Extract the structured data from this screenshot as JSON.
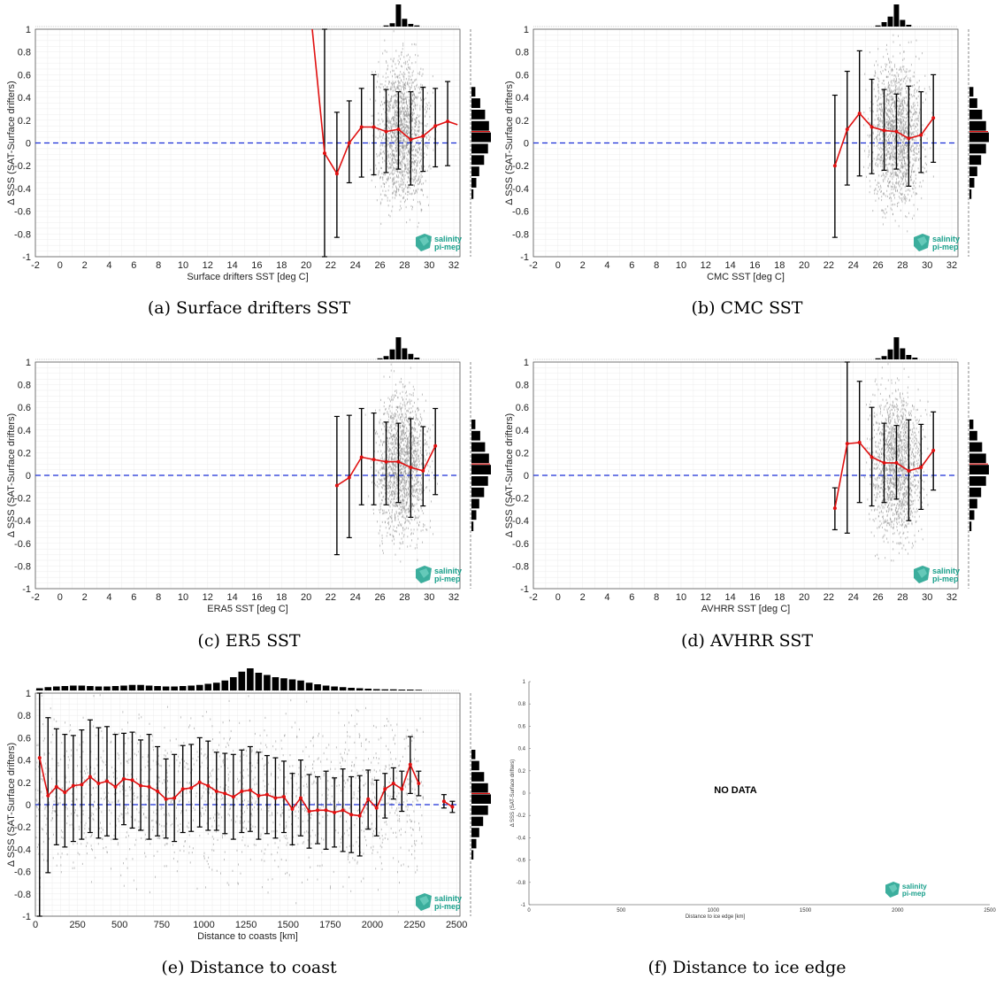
{
  "colors": {
    "mean_line": "#e01010",
    "zero_line": "#1a2fd6",
    "scatter": "#8c8c8c",
    "errorbar": "#000000",
    "logo": "#1aa08c"
  },
  "logo": {
    "line1": "salinity",
    "line2": "pi-mep"
  },
  "chart_data": [
    {
      "type": "scatter",
      "caption": "(a) Surface drifters SST",
      "xlabel": "Surface drifters SST [deg C]",
      "ylabel": "Δ SSS (SAT-Surface drifters)",
      "xlim": [
        -2,
        32.5
      ],
      "ylim": [
        -1,
        1
      ],
      "xticks": [
        -2,
        0,
        2,
        4,
        6,
        8,
        10,
        12,
        14,
        16,
        18,
        20,
        22,
        24,
        26,
        28,
        30,
        32
      ],
      "yticks": [
        -1,
        -0.8,
        -0.6,
        -0.4,
        -0.2,
        0,
        0.2,
        0.4,
        0.6,
        0.8,
        1
      ],
      "grid": true,
      "scatter_cloud": {
        "x_range": [
          21.5,
          32
        ],
        "x_center": 27.8,
        "y_spread": 0.45
      },
      "mean_line": {
        "x": [
          20.5,
          21.5,
          22.5,
          23.5,
          24.5,
          25.5,
          26.5,
          27.5,
          28.5,
          29.5,
          30.5,
          31.5,
          32.3
        ],
        "y": [
          1.0,
          -0.09,
          -0.27,
          0.0,
          0.14,
          0.14,
          0.1,
          0.12,
          0.03,
          0.06,
          0.15,
          0.19,
          0.16
        ],
        "err_low": [
          null,
          -1.0,
          -0.83,
          -0.35,
          -0.3,
          -0.28,
          -0.26,
          -0.23,
          -0.37,
          -0.25,
          -0.21,
          -0.2,
          null
        ],
        "err_high": [
          null,
          1.0,
          0.27,
          0.37,
          0.48,
          0.6,
          0.47,
          0.45,
          0.45,
          0.49,
          0.48,
          0.54,
          null
        ]
      },
      "top_hist": {
        "x": [
          26.5,
          27,
          27.5,
          28,
          28.5,
          29
        ],
        "h": [
          0.05,
          0.15,
          1.0,
          0.35,
          0.12,
          0.05
        ]
      },
      "right_hist": {
        "y": [
          0.5,
          0.4,
          0.3,
          0.2,
          0.1,
          0.0,
          -0.1,
          -0.2,
          -0.3,
          -0.4
        ],
        "w": [
          0.2,
          0.45,
          0.7,
          0.9,
          1.0,
          0.85,
          0.65,
          0.4,
          0.25,
          0.1
        ],
        "mean": 0.1
      },
      "no_data": false
    },
    {
      "type": "scatter",
      "caption": "(b) CMC SST",
      "xlabel": "CMC SST [deg C]",
      "ylabel": "Δ SSS (SAT-Surface drifters)",
      "xlim": [
        -2,
        32.5
      ],
      "ylim": [
        -1,
        1
      ],
      "xticks": [
        -2,
        0,
        2,
        4,
        6,
        8,
        10,
        12,
        14,
        16,
        18,
        20,
        22,
        24,
        26,
        28,
        30,
        32
      ],
      "yticks": [
        -1,
        -0.8,
        -0.6,
        -0.4,
        -0.2,
        0,
        0.2,
        0.4,
        0.6,
        0.8,
        1
      ],
      "grid": true,
      "scatter_cloud": {
        "x_range": [
          23,
          31
        ],
        "x_center": 27.5,
        "y_spread": 0.45
      },
      "mean_line": {
        "x": [
          22.5,
          23.5,
          24.5,
          25.5,
          26.5,
          27.5,
          28.5,
          29.5,
          30.5
        ],
        "y": [
          -0.2,
          0.12,
          0.26,
          0.14,
          0.11,
          0.1,
          0.04,
          0.07,
          0.22
        ],
        "err_low": [
          -0.83,
          -0.37,
          -0.29,
          -0.27,
          -0.24,
          -0.23,
          -0.38,
          -0.26,
          -0.17
        ],
        "err_high": [
          0.42,
          0.63,
          0.81,
          0.56,
          0.47,
          0.43,
          0.5,
          0.45,
          0.6
        ]
      },
      "top_hist": {
        "x": [
          26,
          26.5,
          27,
          27.5,
          28,
          28.5
        ],
        "h": [
          0.05,
          0.2,
          0.45,
          1.0,
          0.3,
          0.08
        ]
      },
      "right_hist": {
        "y": [
          0.5,
          0.4,
          0.3,
          0.2,
          0.1,
          0.0,
          -0.1,
          -0.2,
          -0.3,
          -0.4
        ],
        "w": [
          0.2,
          0.4,
          0.65,
          0.85,
          1.0,
          0.85,
          0.6,
          0.4,
          0.25,
          0.1
        ],
        "mean": 0.1
      },
      "no_data": false
    },
    {
      "type": "scatter",
      "caption": "(c) ER5 SST",
      "xlabel": "ERA5 SST [deg C]",
      "ylabel": "Δ SSS (SAT-Surface drifters)",
      "xlim": [
        -2,
        32.5
      ],
      "ylim": [
        -1,
        1
      ],
      "xticks": [
        -2,
        0,
        2,
        4,
        6,
        8,
        10,
        12,
        14,
        16,
        18,
        20,
        22,
        24,
        26,
        28,
        30,
        32
      ],
      "yticks": [
        -1,
        -0.8,
        -0.6,
        -0.4,
        -0.2,
        0,
        0.2,
        0.4,
        0.6,
        0.8,
        1
      ],
      "grid": true,
      "scatter_cloud": {
        "x_range": [
          22.5,
          31
        ],
        "x_center": 27.8,
        "y_spread": 0.45
      },
      "mean_line": {
        "x": [
          22.5,
          23.5,
          24.5,
          25.5,
          26.5,
          27.5,
          28.5,
          29.5,
          30.5
        ],
        "y": [
          -0.09,
          -0.02,
          0.16,
          0.14,
          0.12,
          0.12,
          0.07,
          0.04,
          0.26
        ],
        "err_low": [
          -0.7,
          -0.55,
          -0.26,
          -0.26,
          -0.26,
          -0.24,
          -0.37,
          -0.27,
          -0.17
        ],
        "err_high": [
          0.52,
          0.53,
          0.59,
          0.55,
          0.47,
          0.46,
          0.5,
          0.43,
          0.59
        ]
      },
      "top_hist": {
        "x": [
          26,
          26.5,
          27,
          27.5,
          28,
          28.5,
          29
        ],
        "h": [
          0.05,
          0.15,
          0.45,
          1.0,
          0.5,
          0.25,
          0.08
        ]
      },
      "right_hist": {
        "y": [
          0.5,
          0.4,
          0.3,
          0.2,
          0.1,
          0.0,
          -0.1,
          -0.2,
          -0.3,
          -0.4
        ],
        "w": [
          0.2,
          0.45,
          0.7,
          0.9,
          1.0,
          0.85,
          0.65,
          0.4,
          0.25,
          0.1
        ],
        "mean": 0.1
      },
      "no_data": false
    },
    {
      "type": "scatter",
      "caption": "(d) AVHRR SST",
      "xlabel": "AVHRR SST [deg C]",
      "ylabel": "Δ SSS (SAT-Surface drifters)",
      "xlim": [
        -2,
        32.5
      ],
      "ylim": [
        -1,
        1
      ],
      "xticks": [
        -2,
        0,
        2,
        4,
        6,
        8,
        10,
        12,
        14,
        16,
        18,
        20,
        22,
        24,
        26,
        28,
        30,
        32
      ],
      "yticks": [
        -1,
        -0.8,
        -0.6,
        -0.4,
        -0.2,
        0,
        0.2,
        0.4,
        0.6,
        0.8,
        1
      ],
      "grid": true,
      "scatter_cloud": {
        "x_range": [
          23,
          31
        ],
        "x_center": 27.5,
        "y_spread": 0.45
      },
      "mean_line": {
        "x": [
          22.5,
          23.5,
          24.5,
          25.5,
          26.5,
          27.5,
          28.5,
          29.5,
          30.5
        ],
        "y": [
          -0.29,
          0.28,
          0.29,
          0.16,
          0.11,
          0.11,
          0.04,
          0.07,
          0.22
        ],
        "err_low": [
          -0.48,
          -0.51,
          -0.24,
          -0.27,
          -0.24,
          -0.21,
          -0.4,
          -0.3,
          -0.13
        ],
        "err_high": [
          -0.11,
          1.0,
          0.83,
          0.6,
          0.46,
          0.44,
          0.49,
          0.45,
          0.56
        ]
      },
      "top_hist": {
        "x": [
          26,
          26.5,
          27,
          27.5,
          28,
          28.5,
          29
        ],
        "h": [
          0.05,
          0.15,
          0.45,
          1.0,
          0.5,
          0.2,
          0.08
        ]
      },
      "right_hist": {
        "y": [
          0.5,
          0.4,
          0.3,
          0.2,
          0.1,
          0.0,
          -0.1,
          -0.2,
          -0.3,
          -0.4
        ],
        "w": [
          0.2,
          0.4,
          0.65,
          0.85,
          1.0,
          0.85,
          0.6,
          0.4,
          0.25,
          0.1
        ],
        "mean": 0.1
      },
      "no_data": false
    },
    {
      "type": "scatter",
      "caption": "(e) Distance to coast",
      "xlabel": "Distance to coasts [km]",
      "ylabel": "Δ SSS (SAT-Surface drifters)",
      "xlim": [
        0,
        2520
      ],
      "ylim": [
        -1,
        1
      ],
      "xticks": [
        0,
        250,
        500,
        750,
        1000,
        1250,
        1500,
        1750,
        2000,
        2250,
        2500
      ],
      "yticks": [
        -1,
        -0.8,
        -0.6,
        -0.4,
        -0.2,
        0,
        0.2,
        0.4,
        0.6,
        0.8,
        1
      ],
      "grid": true,
      "scatter_cloud": {
        "x_range": [
          0,
          2300
        ],
        "x_center": 1200,
        "y_spread": 0.5
      },
      "mean_line": {
        "x": [
          25,
          75,
          125,
          175,
          225,
          275,
          325,
          375,
          425,
          475,
          525,
          575,
          625,
          675,
          725,
          775,
          825,
          875,
          925,
          975,
          1025,
          1075,
          1125,
          1175,
          1225,
          1275,
          1325,
          1375,
          1425,
          1475,
          1525,
          1575,
          1625,
          1675,
          1725,
          1775,
          1825,
          1875,
          1925,
          1975,
          2025,
          2075,
          2125,
          2175,
          2225,
          2275,
          2425,
          2475
        ],
        "y": [
          0.42,
          0.08,
          0.16,
          0.11,
          0.17,
          0.18,
          0.25,
          0.19,
          0.21,
          0.16,
          0.23,
          0.22,
          0.17,
          0.16,
          0.12,
          0.05,
          0.06,
          0.14,
          0.15,
          0.2,
          0.17,
          0.12,
          0.1,
          0.07,
          0.12,
          0.13,
          0.08,
          0.09,
          0.06,
          0.07,
          -0.04,
          0.06,
          -0.06,
          -0.05,
          -0.05,
          -0.07,
          -0.05,
          -0.09,
          -0.1,
          0.05,
          -0.03,
          0.14,
          0.19,
          0.14,
          0.36,
          0.19,
          0.03,
          -0.02
        ],
        "err_low": [
          -1.0,
          -0.61,
          -0.36,
          -0.38,
          -0.33,
          -0.31,
          -0.25,
          -0.3,
          -0.28,
          -0.31,
          -0.18,
          -0.21,
          -0.23,
          -0.31,
          -0.28,
          -0.3,
          -0.33,
          -0.25,
          -0.24,
          -0.2,
          -0.23,
          -0.23,
          -0.26,
          -0.31,
          -0.25,
          -0.24,
          -0.31,
          -0.26,
          -0.3,
          -0.25,
          -0.36,
          -0.28,
          -0.39,
          -0.35,
          -0.4,
          -0.38,
          -0.42,
          -0.43,
          -0.46,
          -0.22,
          -0.28,
          -0.12,
          0.05,
          -0.06,
          0.1,
          0.08,
          -0.03,
          -0.07
        ],
        "err_high": [
          1.0,
          0.78,
          0.68,
          0.63,
          0.62,
          0.67,
          0.76,
          0.69,
          0.7,
          0.63,
          0.64,
          0.65,
          0.58,
          0.63,
          0.52,
          0.41,
          0.45,
          0.53,
          0.54,
          0.6,
          0.57,
          0.47,
          0.46,
          0.45,
          0.49,
          0.52,
          0.47,
          0.44,
          0.42,
          0.39,
          0.28,
          0.4,
          0.27,
          0.25,
          0.3,
          0.24,
          0.32,
          0.25,
          0.26,
          0.31,
          0.22,
          0.28,
          0.33,
          0.3,
          0.61,
          0.3,
          0.09,
          0.03
        ]
      },
      "top_hist": {
        "x": [
          25,
          75,
          125,
          175,
          225,
          275,
          325,
          375,
          425,
          475,
          525,
          575,
          625,
          675,
          725,
          775,
          825,
          875,
          925,
          975,
          1025,
          1075,
          1125,
          1175,
          1225,
          1275,
          1325,
          1375,
          1425,
          1475,
          1525,
          1575,
          1625,
          1675,
          1725,
          1775,
          1825,
          1875,
          1925,
          1975,
          2025,
          2075,
          2125,
          2175,
          2225,
          2275
        ],
        "h": [
          0.1,
          0.15,
          0.18,
          0.2,
          0.22,
          0.22,
          0.2,
          0.18,
          0.18,
          0.2,
          0.22,
          0.25,
          0.25,
          0.22,
          0.2,
          0.18,
          0.18,
          0.2,
          0.22,
          0.25,
          0.3,
          0.35,
          0.45,
          0.6,
          0.85,
          1.0,
          0.8,
          0.7,
          0.6,
          0.55,
          0.5,
          0.45,
          0.35,
          0.28,
          0.22,
          0.18,
          0.15,
          0.12,
          0.1,
          0.08,
          0.06,
          0.05,
          0.05,
          0.04,
          0.04,
          0.03
        ]
      },
      "right_hist": {
        "y": [
          0.5,
          0.4,
          0.3,
          0.2,
          0.1,
          0.0,
          -0.1,
          -0.2,
          -0.3,
          -0.4
        ],
        "w": [
          0.2,
          0.4,
          0.65,
          0.85,
          1.0,
          0.85,
          0.6,
          0.4,
          0.25,
          0.1
        ],
        "mean": 0.1
      },
      "no_data": false
    },
    {
      "type": "scatter",
      "caption": "(f) Distance to ice edge",
      "xlabel": "Distance to ice edge [km]",
      "ylabel": "Δ SSS (SAT-Surface drifters)",
      "xlim": [
        0,
        2500
      ],
      "ylim": [
        -1,
        1
      ],
      "xticks": [
        0,
        500,
        1000,
        1500,
        2000,
        2500
      ],
      "yticks": [
        -1,
        -0.8,
        -0.6,
        -0.4,
        -0.2,
        0,
        0.2,
        0.4,
        0.6,
        0.8,
        1
      ],
      "grid": false,
      "no_data": true,
      "no_data_text": "NO DATA"
    }
  ]
}
